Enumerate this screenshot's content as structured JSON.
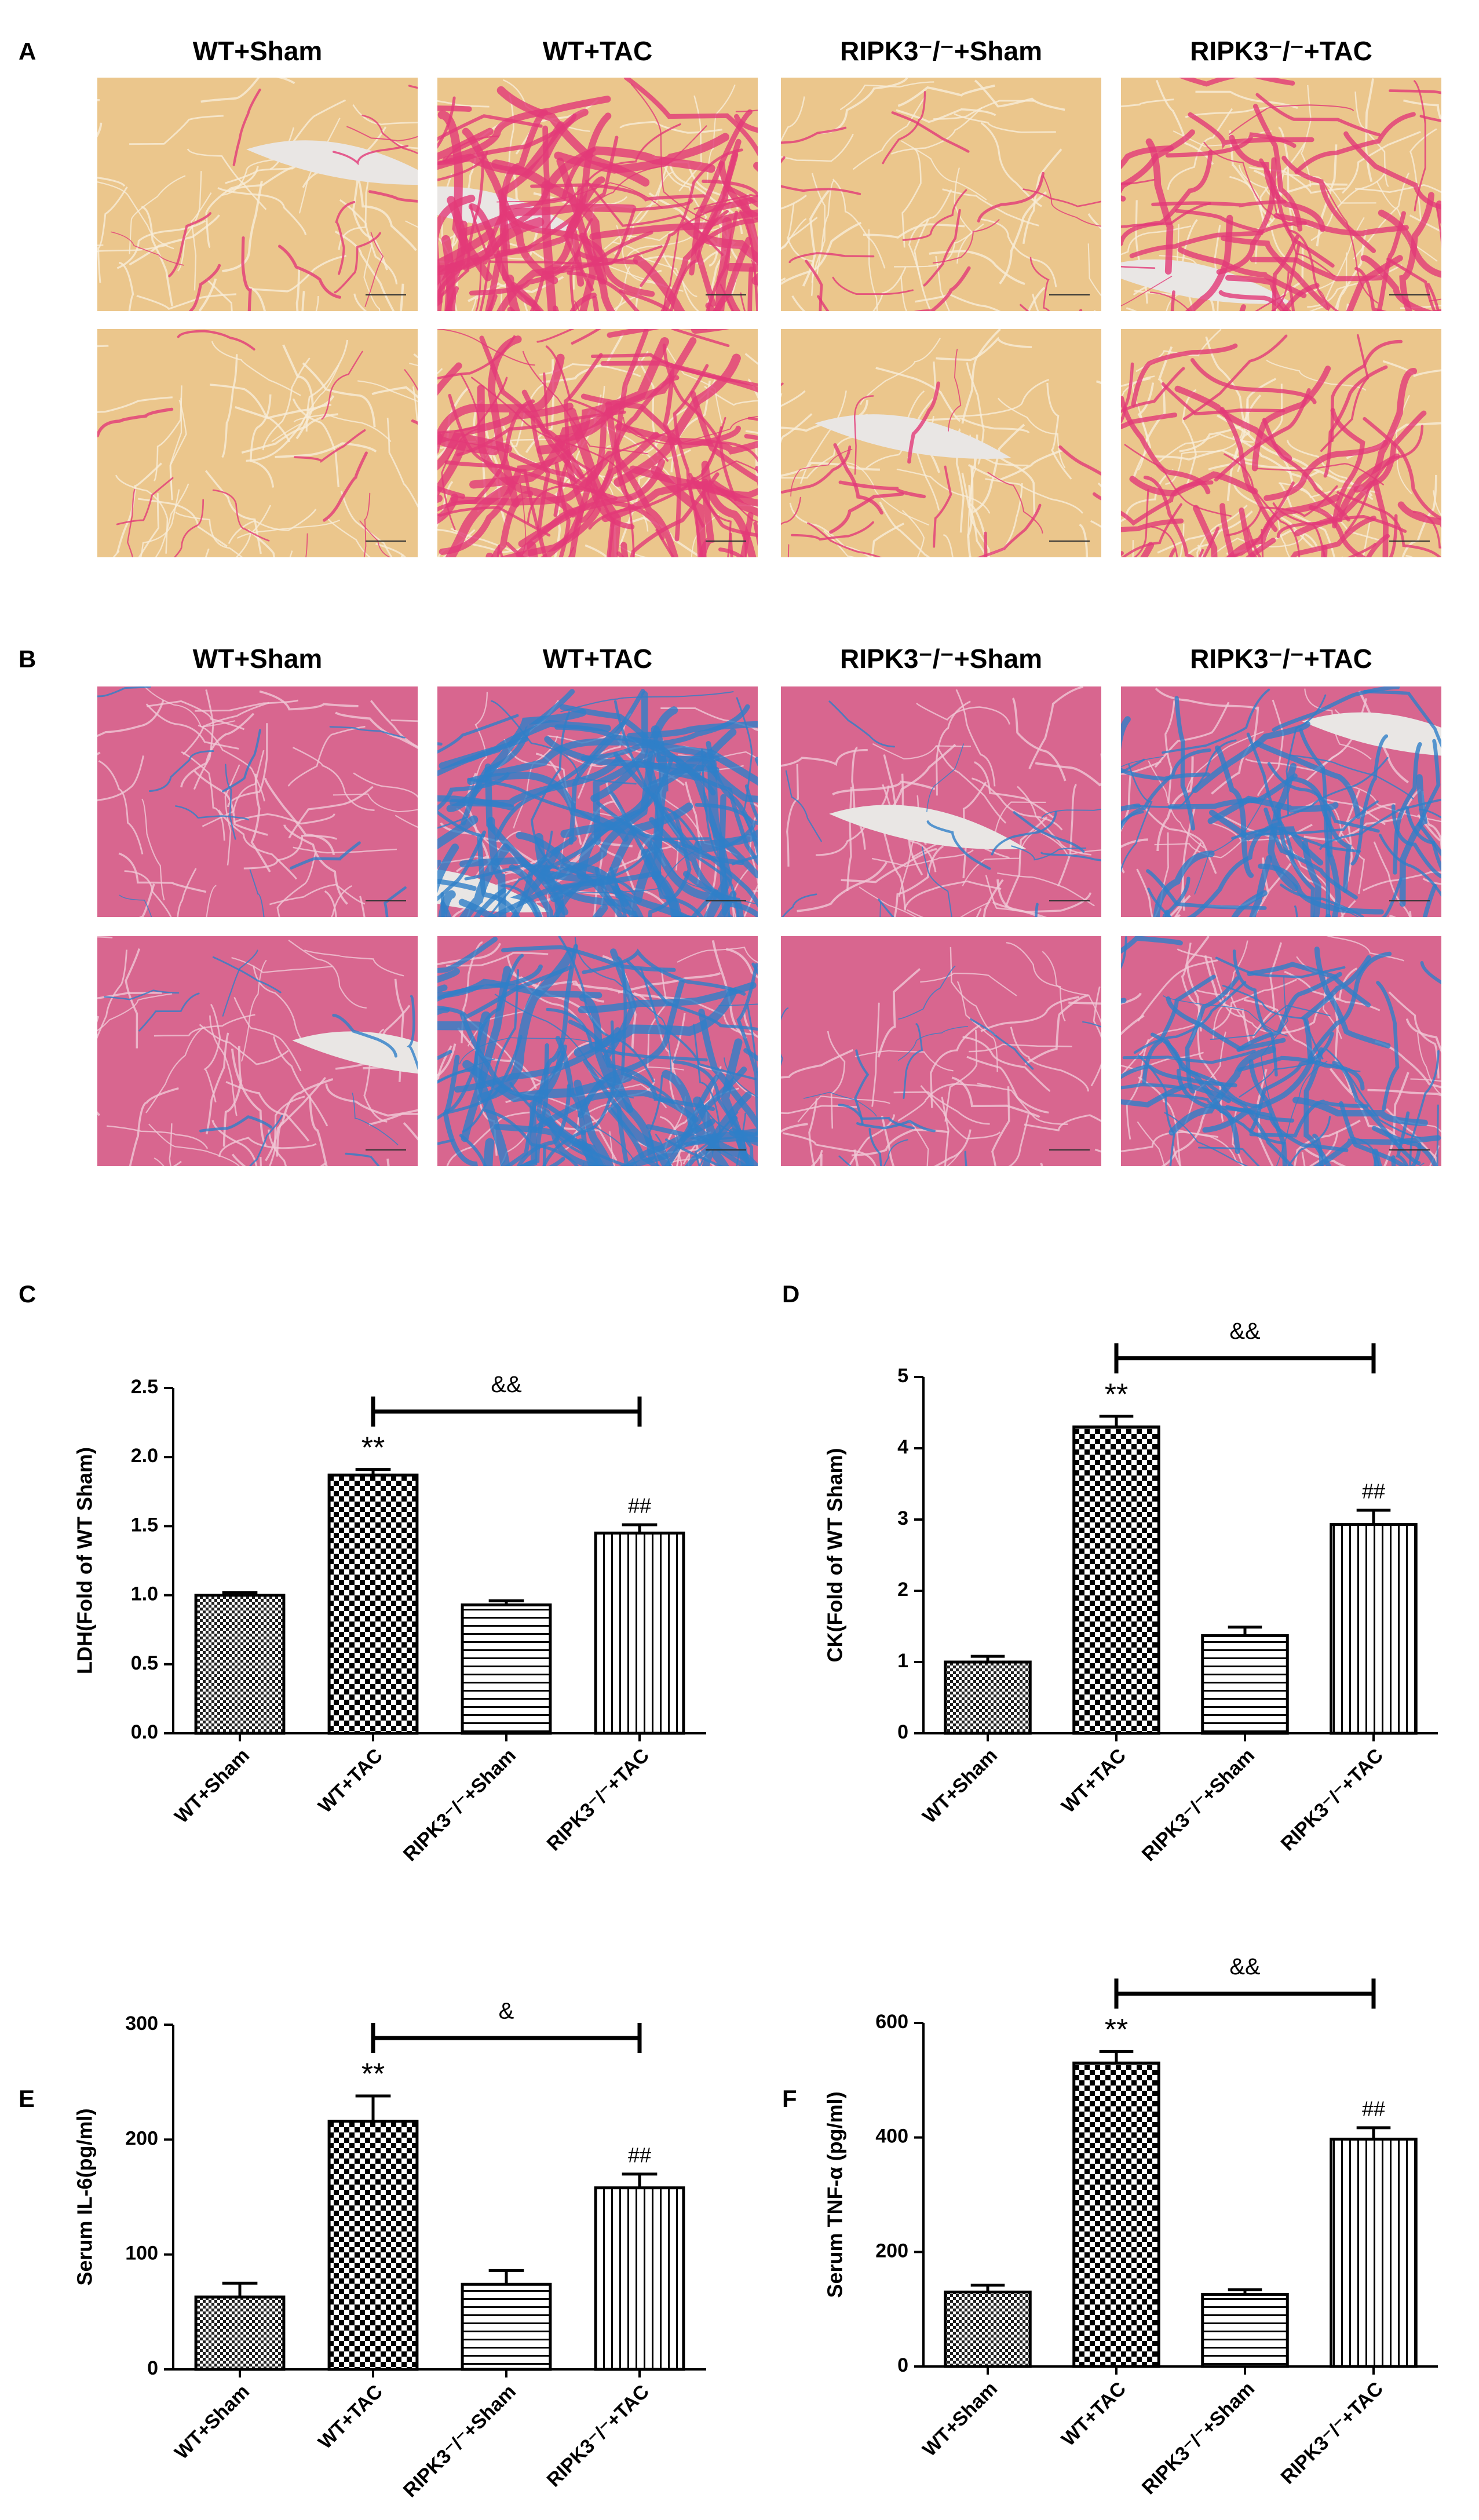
{
  "histology": [
    {
      "label": "A",
      "columns": [
        "WT+Sham",
        "WT+TAC",
        "RIPK3⁻/⁻+Sham",
        "RIPK3⁻/⁻+TAC"
      ]
    },
    {
      "label": "B",
      "columns": [
        "WT+Sham",
        "WT+TAC",
        "RIPK3⁻/⁻+Sham",
        "RIPK3⁻/⁻+TAC"
      ]
    }
  ],
  "chart_data": [
    {
      "type": "bar",
      "panel": "C",
      "y_label": "LDH(Fold of WT Sham)",
      "categories": [
        "WT+Sham",
        "WT+TAC",
        "RIPK3⁻/⁻+Sham",
        "RIPK3⁻/⁻+TAC"
      ],
      "values": [
        1.0,
        1.87,
        0.93,
        1.45
      ],
      "errors": [
        0.02,
        0.04,
        0.03,
        0.06
      ],
      "patterns": [
        "crosshatch",
        "checker",
        "horizontal",
        "vertical"
      ],
      "marks": [
        null,
        "**",
        null,
        "##"
      ],
      "bracket_label": "&&",
      "ylim": [
        0,
        2.5
      ],
      "yticks": [
        {
          "value": 0,
          "label": "0.0"
        },
        0.5,
        {
          "value": 1,
          "label": "1.0"
        },
        1.5,
        {
          "value": 2,
          "label": "2.0"
        },
        2.5
      ]
    },
    {
      "type": "bar",
      "panel": "D",
      "y_label": "CK(Fold of WT Sham)",
      "categories": [
        "WT+Sham",
        "WT+TAC",
        "RIPK3⁻/⁻+Sham",
        "RIPK3⁻/⁻+TAC"
      ],
      "values": [
        1.0,
        4.3,
        1.37,
        2.93
      ],
      "errors": [
        0.08,
        0.15,
        0.12,
        0.2
      ],
      "patterns": [
        "crosshatch",
        "checker",
        "horizontal",
        "vertical"
      ],
      "marks": [
        null,
        "**",
        null,
        "##"
      ],
      "bracket_label": "&&",
      "ylim": [
        0,
        5
      ],
      "yticks": [
        0,
        1,
        2,
        3,
        4,
        5
      ]
    },
    {
      "type": "bar",
      "panel": "E",
      "y_label": "Serum IL-6(pg/ml)",
      "categories": [
        "WT+Sham",
        "WT+TAC",
        "RIPK3⁻/⁻+Sham",
        "RIPK3⁻/⁻+TAC"
      ],
      "values": [
        63,
        216,
        74,
        158
      ],
      "errors": [
        12,
        22,
        12,
        12
      ],
      "patterns": [
        "crosshatch",
        "checker",
        "horizontal",
        "vertical"
      ],
      "marks": [
        null,
        "**",
        null,
        "##"
      ],
      "bracket_label": "&",
      "ylim": [
        0,
        300
      ],
      "yticks": [
        0,
        100,
        200,
        300
      ]
    },
    {
      "type": "bar",
      "panel": "F",
      "y_label": "Serum TNF-α (pg/ml)",
      "categories": [
        "WT+Sham",
        "WT+TAC",
        "RIPK3⁻/⁻+Sham",
        "RIPK3⁻/⁻+TAC"
      ],
      "values": [
        130,
        530,
        126,
        397
      ],
      "errors": [
        12,
        20,
        8,
        20
      ],
      "patterns": [
        "crosshatch",
        "checker",
        "horizontal",
        "vertical"
      ],
      "marks": [
        null,
        "**",
        null,
        "##"
      ],
      "bracket_label": "&&",
      "ylim": [
        0,
        600
      ],
      "yticks": [
        0,
        200,
        400,
        600
      ]
    }
  ]
}
